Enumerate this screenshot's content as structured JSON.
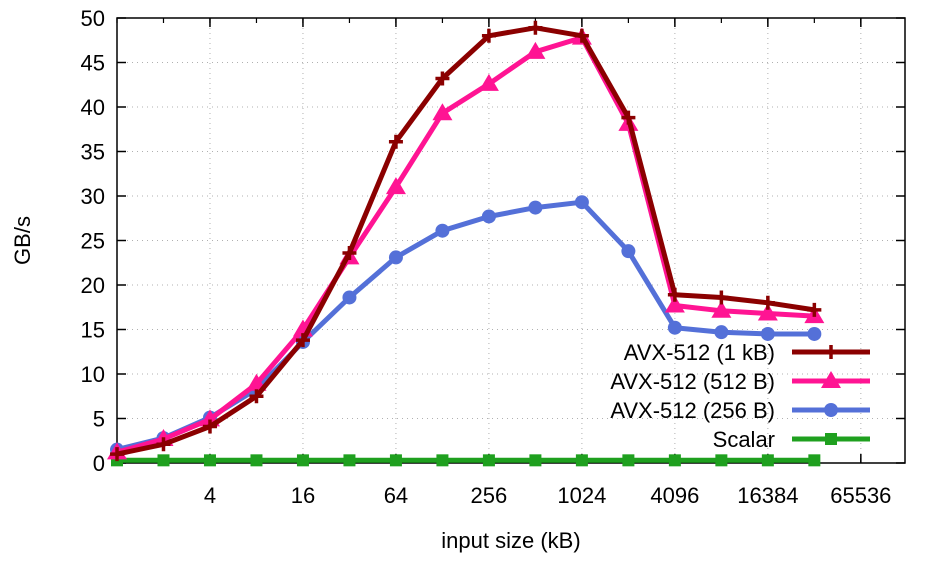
{
  "chart_data": {
    "type": "line",
    "title": "",
    "xlabel": "input size (kB)",
    "ylabel": "GB/s",
    "x_scale": "log2",
    "x": [
      1,
      2,
      4,
      8,
      16,
      32,
      64,
      128,
      256,
      512,
      1024,
      2048,
      4096,
      8192,
      16384,
      32768,
      65536
    ],
    "x_ticks": [
      4,
      16,
      64,
      256,
      1024,
      4096,
      16384,
      65536
    ],
    "x_tick_labels": [
      "4",
      "16",
      "64",
      "256",
      "1024",
      "4096",
      "16384",
      "65536"
    ],
    "y_ticks": [
      0,
      5,
      10,
      15,
      20,
      25,
      30,
      35,
      40,
      45,
      50
    ],
    "y_tick_labels": [
      "0",
      "5",
      "10",
      "15",
      "20",
      "25",
      "30",
      "35",
      "40",
      "45",
      "50"
    ],
    "ylim": [
      0,
      50
    ],
    "grid": true,
    "legend_position": "bottom-right",
    "series": [
      {
        "name": "AVX-512 (1 kB)",
        "color": "#8b0000",
        "marker": "plus",
        "values": [
          1.0,
          2.1,
          4.1,
          7.5,
          13.8,
          23.6,
          36.1,
          43.2,
          48.0,
          48.9,
          48.0,
          38.8,
          18.9,
          18.6,
          18.0,
          17.2,
          null
        ]
      },
      {
        "name": "AVX-512 (512 B)",
        "color": "#ff1493",
        "marker": "triangle",
        "values": [
          1.2,
          2.7,
          4.9,
          8.9,
          15.0,
          23.1,
          31.0,
          39.3,
          42.6,
          46.2,
          47.8,
          38.1,
          17.7,
          17.1,
          16.8,
          16.5,
          null
        ]
      },
      {
        "name": "AVX-512 (256 B)",
        "color": "#5470d8",
        "marker": "circle",
        "values": [
          1.5,
          2.8,
          5.1,
          8.3,
          13.6,
          18.6,
          23.1,
          26.1,
          27.7,
          28.7,
          29.3,
          23.8,
          15.2,
          14.7,
          14.5,
          14.5,
          null
        ]
      },
      {
        "name": "Scalar",
        "color": "#1fa01f",
        "marker": "square",
        "values": [
          0.3,
          0.3,
          0.3,
          0.3,
          0.3,
          0.3,
          0.3,
          0.3,
          0.3,
          0.3,
          0.3,
          0.3,
          0.3,
          0.3,
          0.3,
          0.3,
          null
        ]
      }
    ]
  }
}
